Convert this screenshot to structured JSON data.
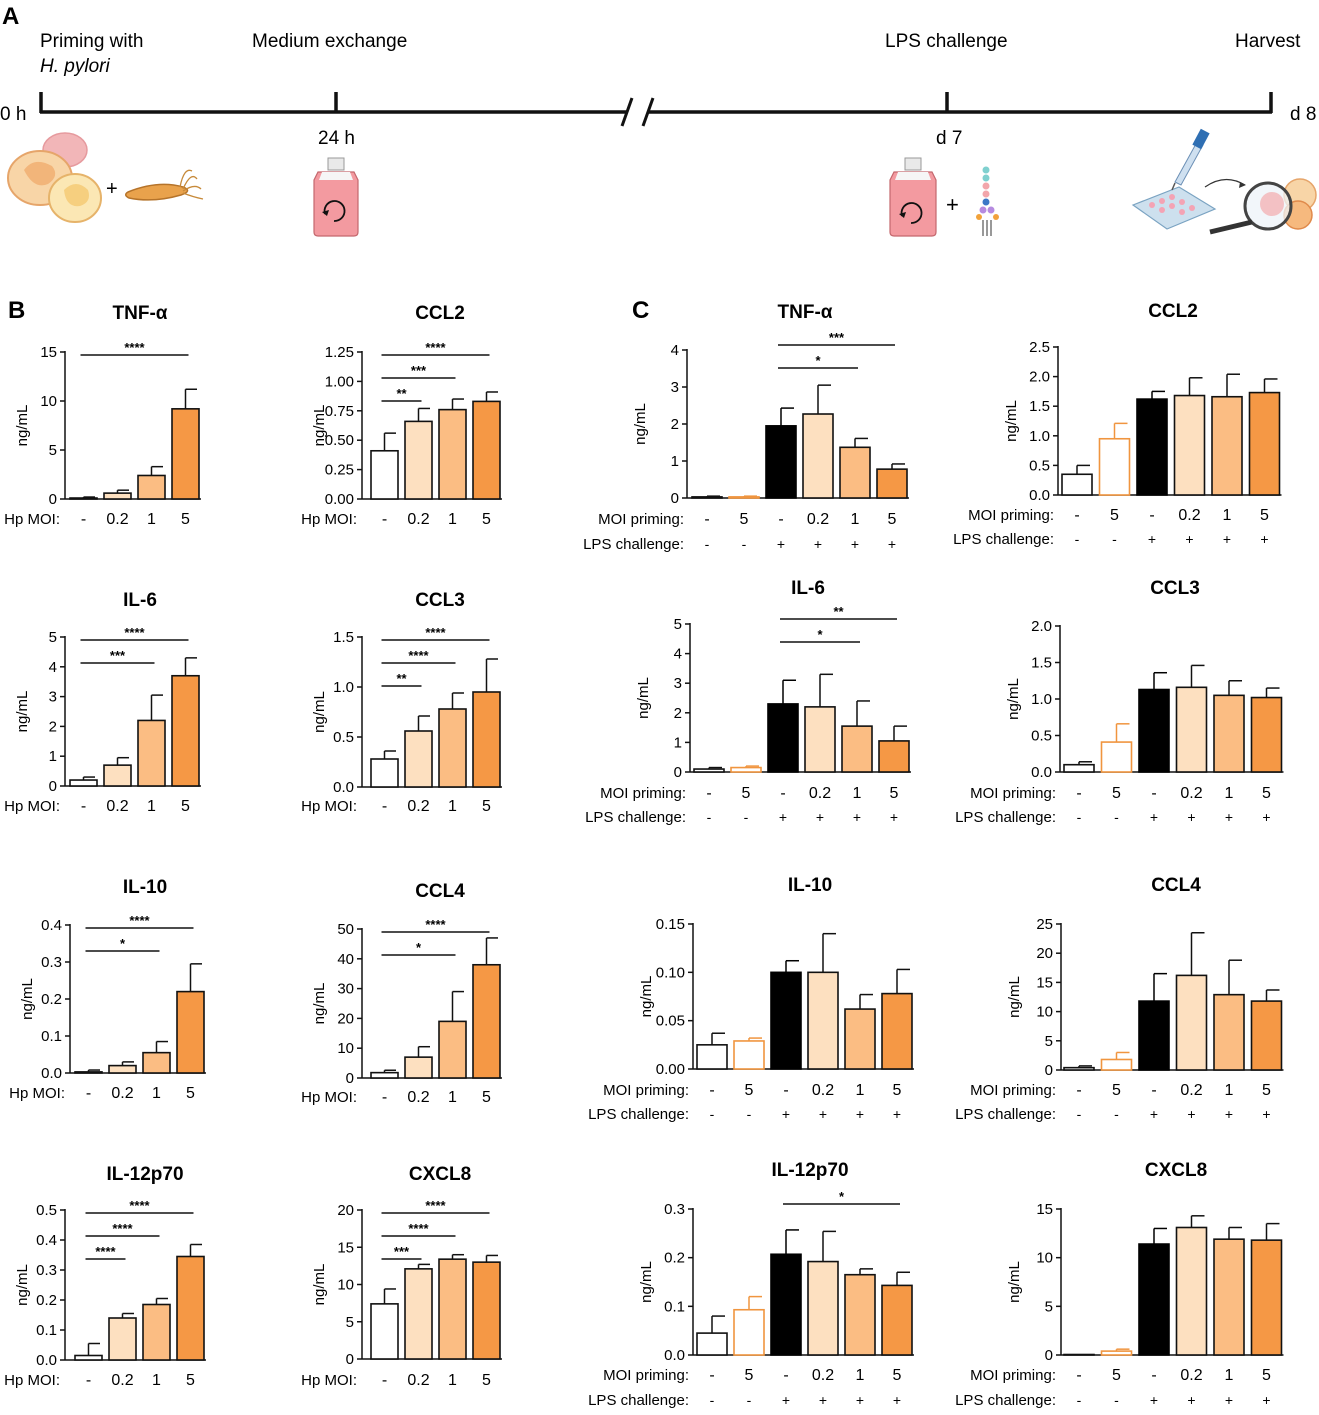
{
  "panel_a": {
    "letter": "A",
    "steps": [
      {
        "title": "Priming with",
        "subtitle": "H. pylori",
        "time": "0 h"
      },
      {
        "title": "Medium exchange",
        "time": "24 h"
      },
      {
        "title": "LPS challenge",
        "time": "d 7"
      },
      {
        "title": "Harvest",
        "time": "d 8"
      }
    ],
    "plus": "+"
  },
  "panel_b": {
    "letter": "B",
    "row_label": "Hp MOI:",
    "categories": [
      "-",
      "0.2",
      "1",
      "5"
    ],
    "colors": [
      "#ffffff",
      "#fde0c0",
      "#fbbd83",
      "#f59845"
    ]
  },
  "panel_c": {
    "letter": "C",
    "row1_label": "MOI priming:",
    "row2_label": "LPS challenge:",
    "priming": [
      "-",
      "5",
      "-",
      "0.2",
      "1",
      "5"
    ],
    "lps": [
      "-",
      "-",
      "+",
      "+",
      "+",
      "+"
    ],
    "colors": [
      "#ffffff",
      "#ffffff",
      "#000000",
      "#fde0c0",
      "#fbbd83",
      "#f59845"
    ],
    "edge_colors": [
      "#111111",
      "#f0953f",
      "#000000",
      "#111111",
      "#111111",
      "#111111"
    ]
  },
  "chart_data": [
    {
      "id": "b-tnf",
      "type": "bar",
      "title": "TNF-α",
      "ylabel": "ng/mL",
      "ylim": [
        0,
        15
      ],
      "yticks": [
        "0",
        "5",
        "10",
        "15"
      ],
      "values": [
        0.1,
        0.6,
        2.4,
        9.2
      ],
      "errors": [
        0.1,
        0.3,
        0.9,
        2.0
      ],
      "sig": [
        {
          "from": 0,
          "to": 3,
          "label": "****"
        }
      ]
    },
    {
      "id": "b-ccl2",
      "type": "bar",
      "title": "CCL2",
      "ylabel": "ng/mL",
      "ylim": [
        0,
        1.25
      ],
      "yticks": [
        "0.00",
        "0.25",
        "0.50",
        "0.75",
        "1.00",
        "1.25"
      ],
      "values": [
        0.41,
        0.66,
        0.76,
        0.83
      ],
      "errors": [
        0.15,
        0.11,
        0.09,
        0.08
      ],
      "sig": [
        {
          "from": 0,
          "to": 1,
          "label": "**"
        },
        {
          "from": 0,
          "to": 2,
          "label": "***"
        },
        {
          "from": 0,
          "to": 3,
          "label": "****"
        }
      ]
    },
    {
      "id": "b-il6",
      "type": "bar",
      "title": "IL-6",
      "ylabel": "ng/mL",
      "ylim": [
        0,
        5
      ],
      "yticks": [
        "0",
        "1",
        "2",
        "3",
        "4",
        "5"
      ],
      "values": [
        0.2,
        0.7,
        2.2,
        3.7
      ],
      "errors": [
        0.1,
        0.25,
        0.85,
        0.6
      ],
      "sig": [
        {
          "from": 0,
          "to": 2,
          "label": "***"
        },
        {
          "from": 0,
          "to": 3,
          "label": "****"
        }
      ]
    },
    {
      "id": "b-ccl3",
      "type": "bar",
      "title": "CCL3",
      "ylabel": "ng/mL",
      "ylim": [
        0,
        1.5
      ],
      "yticks": [
        "0.0",
        "0.5",
        "1.0",
        "1.5"
      ],
      "values": [
        0.28,
        0.56,
        0.78,
        0.95
      ],
      "errors": [
        0.08,
        0.15,
        0.16,
        0.33
      ],
      "sig": [
        {
          "from": 0,
          "to": 1,
          "label": "**"
        },
        {
          "from": 0,
          "to": 2,
          "label": "****"
        },
        {
          "from": 0,
          "to": 3,
          "label": "****"
        }
      ]
    },
    {
      "id": "b-il10",
      "type": "bar",
      "title": "IL-10",
      "ylabel": "ng/mL",
      "ylim": [
        0,
        0.4
      ],
      "yticks": [
        "0.0",
        "0.1",
        "0.2",
        "0.3",
        "0.4"
      ],
      "values": [
        0.003,
        0.02,
        0.055,
        0.22
      ],
      "errors": [
        0.005,
        0.01,
        0.03,
        0.075
      ],
      "sig": [
        {
          "from": 0,
          "to": 2,
          "label": "*"
        },
        {
          "from": 0,
          "to": 3,
          "label": "****"
        }
      ]
    },
    {
      "id": "b-ccl4",
      "type": "bar",
      "title": "CCL4",
      "ylabel": "ng/mL",
      "ylim": [
        0,
        50
      ],
      "yticks": [
        "0",
        "10",
        "20",
        "30",
        "40",
        "50"
      ],
      "values": [
        1.8,
        7,
        19,
        38
      ],
      "errors": [
        0.8,
        3.5,
        10,
        9
      ],
      "sig": [
        {
          "from": 0,
          "to": 2,
          "label": "*"
        },
        {
          "from": 0,
          "to": 3,
          "label": "****"
        }
      ]
    },
    {
      "id": "b-il12",
      "type": "bar",
      "title": "IL-12p70",
      "ylabel": "ng/mL",
      "ylim": [
        0,
        0.5
      ],
      "yticks": [
        "0.0",
        "0.1",
        "0.2",
        "0.3",
        "0.4",
        "0.5"
      ],
      "values": [
        0.015,
        0.14,
        0.185,
        0.345
      ],
      "errors": [
        0.04,
        0.015,
        0.02,
        0.04
      ],
      "sig": [
        {
          "from": 0,
          "to": 1,
          "label": "****"
        },
        {
          "from": 0,
          "to": 2,
          "label": "****"
        },
        {
          "from": 0,
          "to": 3,
          "label": "****"
        }
      ]
    },
    {
      "id": "b-cxcl8",
      "type": "bar",
      "title": "CXCL8",
      "ylabel": "ng/mL",
      "ylim": [
        0,
        20
      ],
      "yticks": [
        "0",
        "5",
        "10",
        "15",
        "20"
      ],
      "values": [
        7.4,
        12.1,
        13.4,
        13.0
      ],
      "errors": [
        2.0,
        0.6,
        0.6,
        0.9
      ],
      "sig": [
        {
          "from": 0,
          "to": 1,
          "label": "***"
        },
        {
          "from": 0,
          "to": 2,
          "label": "****"
        },
        {
          "from": 0,
          "to": 3,
          "label": "****"
        }
      ]
    },
    {
      "id": "c-tnf",
      "type": "bar",
      "title": "TNF-α",
      "ylabel": "ng/mL",
      "ylim": [
        0,
        4
      ],
      "yticks": [
        "0",
        "1",
        "2",
        "3",
        "4"
      ],
      "values": [
        0.03,
        0.03,
        1.95,
        2.27,
        1.37,
        0.78
      ],
      "errors": [
        0.02,
        0.02,
        0.48,
        0.78,
        0.24,
        0.14
      ],
      "sig": [
        {
          "from": 2,
          "to": 4,
          "label": "*"
        },
        {
          "from": 2,
          "to": 5,
          "label": "***"
        }
      ]
    },
    {
      "id": "c-ccl2",
      "type": "bar",
      "title": "CCL2",
      "ylabel": "ng/mL",
      "ylim": [
        0,
        2.5
      ],
      "yticks": [
        "0.0",
        "0.5",
        "1.0",
        "1.5",
        "2.0",
        "2.5"
      ],
      "values": [
        0.35,
        0.95,
        1.62,
        1.68,
        1.66,
        1.73
      ],
      "errors": [
        0.15,
        0.26,
        0.13,
        0.3,
        0.38,
        0.23
      ],
      "sig": []
    },
    {
      "id": "c-il6",
      "type": "bar",
      "title": "IL-6",
      "ylabel": "ng/mL",
      "ylim": [
        0,
        5
      ],
      "yticks": [
        "0",
        "1",
        "2",
        "3",
        "4",
        "5"
      ],
      "values": [
        0.1,
        0.15,
        2.3,
        2.2,
        1.55,
        1.05
      ],
      "errors": [
        0.05,
        0.05,
        0.8,
        1.1,
        0.85,
        0.5
      ],
      "sig": [
        {
          "from": 2,
          "to": 4,
          "label": "*"
        },
        {
          "from": 2,
          "to": 5,
          "label": "**"
        }
      ]
    },
    {
      "id": "c-ccl3",
      "type": "bar",
      "title": "CCL3",
      "ylabel": "ng/mL",
      "ylim": [
        0,
        2
      ],
      "yticks": [
        "0.0",
        "0.5",
        "1.0",
        "1.5",
        "2.0"
      ],
      "values": [
        0.1,
        0.41,
        1.13,
        1.16,
        1.05,
        1.02
      ],
      "errors": [
        0.04,
        0.25,
        0.23,
        0.3,
        0.2,
        0.13
      ],
      "sig": []
    },
    {
      "id": "c-il10",
      "type": "bar",
      "title": "IL-10",
      "ylabel": "ng/mL",
      "ylim": [
        0,
        0.15
      ],
      "yticks": [
        "0.00",
        "0.05",
        "0.10",
        "0.15"
      ],
      "values": [
        0.025,
        0.029,
        0.1,
        0.1,
        0.062,
        0.078
      ],
      "errors": [
        0.012,
        0.003,
        0.012,
        0.04,
        0.015,
        0.025
      ],
      "sig": []
    },
    {
      "id": "c-ccl4",
      "type": "bar",
      "title": "CCL4",
      "ylabel": "ng/mL",
      "ylim": [
        0,
        25
      ],
      "yticks": [
        "0",
        "5",
        "10",
        "15",
        "20",
        "25"
      ],
      "values": [
        0.4,
        1.8,
        11.8,
        16.2,
        12.9,
        11.8
      ],
      "errors": [
        0.3,
        1.2,
        4.7,
        7.3,
        5.9,
        1.9
      ],
      "sig": []
    },
    {
      "id": "c-il12",
      "type": "bar",
      "title": "IL-12p70",
      "ylabel": "ng/mL",
      "ylim": [
        0,
        0.3
      ],
      "yticks": [
        "0.0",
        "0.1",
        "0.2",
        "0.3"
      ],
      "values": [
        0.045,
        0.093,
        0.207,
        0.192,
        0.165,
        0.143
      ],
      "errors": [
        0.035,
        0.027,
        0.05,
        0.062,
        0.012,
        0.027
      ],
      "sig": [
        {
          "from": 2,
          "to": 5,
          "label": "*"
        }
      ]
    },
    {
      "id": "c-cxcl8",
      "type": "bar",
      "title": "CXCL8",
      "ylabel": "ng/mL",
      "ylim": [
        0,
        15
      ],
      "yticks": [
        "0",
        "5",
        "10",
        "15"
      ],
      "values": [
        0.0,
        0.4,
        11.4,
        13.1,
        11.9,
        11.8
      ],
      "errors": [
        0.0,
        0.2,
        1.6,
        1.2,
        1.2,
        1.7
      ],
      "sig": []
    }
  ]
}
